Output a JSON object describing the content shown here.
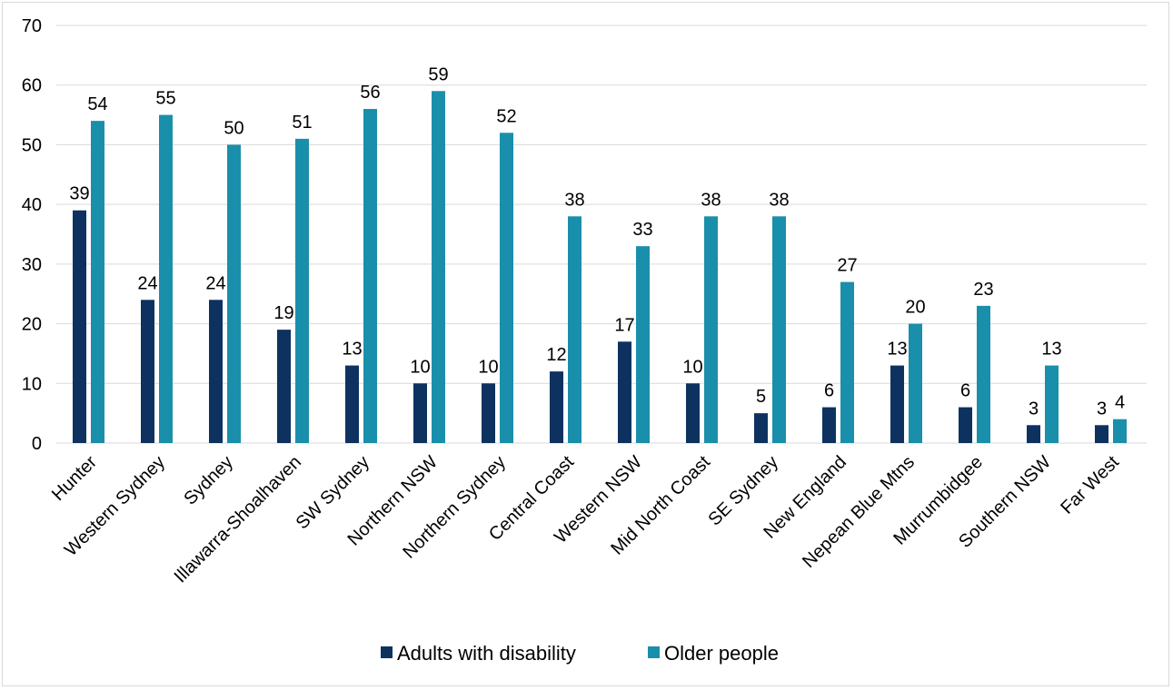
{
  "chart_data": {
    "type": "bar",
    "title": "",
    "xlabel": "",
    "ylabel": "",
    "ylim": [
      0,
      70
    ],
    "yticks": [
      0,
      10,
      20,
      30,
      40,
      50,
      60,
      70
    ],
    "grid": true,
    "legend_position": "bottom",
    "categories": [
      "Hunter",
      "Western Sydney",
      "Sydney",
      "Illawarra-Shoalhaven",
      "SW Sydney",
      "Northern NSW",
      "Northern Sydney",
      "Central Coast",
      "Western NSW",
      "Mid North Coast",
      "SE Sydney",
      "New England",
      "Nepean Blue Mtns",
      "Murrumbidgee",
      "Southern NSW",
      "Far West"
    ],
    "series": [
      {
        "name": "Adults with disability",
        "color": "#0d3260",
        "values": [
          39,
          24,
          24,
          19,
          13,
          10,
          10,
          12,
          17,
          10,
          5,
          6,
          13,
          6,
          3,
          3
        ]
      },
      {
        "name": "Older people",
        "color": "#1a8fab",
        "values": [
          54,
          55,
          50,
          51,
          56,
          59,
          52,
          38,
          33,
          38,
          38,
          27,
          20,
          23,
          13,
          4
        ]
      }
    ]
  }
}
